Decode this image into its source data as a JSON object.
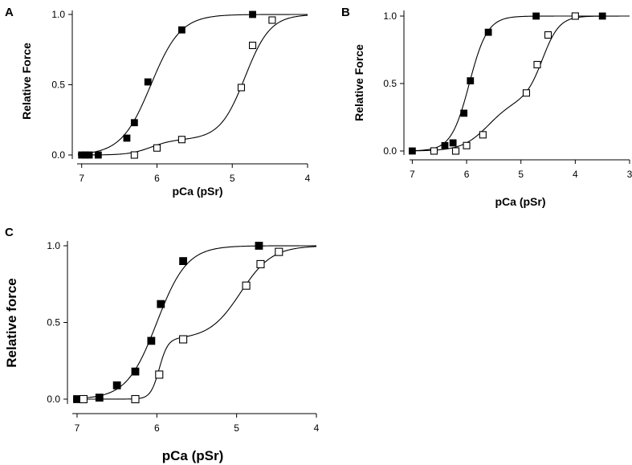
{
  "figure": {
    "panels": [
      {
        "letter": "A",
        "ylabel": "Relative Force",
        "xlabel": "pCa (pSr)"
      },
      {
        "letter": "B",
        "ylabel": "Relative Force",
        "xlabel": "pCa (pSr)"
      },
      {
        "letter": "C",
        "ylabel": "Relative force",
        "xlabel": "pCa (pSr)"
      }
    ]
  },
  "chart_data": [
    {
      "panel": "A",
      "type": "scatter",
      "title": "",
      "xlabel": "pCa (pSr)",
      "ylabel": "Relative Force",
      "xlim": [
        7.05,
        4
      ],
      "ylim": [
        0,
        1
      ],
      "xticks": [
        7,
        6,
        5,
        4
      ],
      "xtick_labels": [
        "7",
        "6",
        "5",
        "4"
      ],
      "yticks": [
        0,
        0.5,
        1
      ],
      "ytick_labels": [
        "0.0",
        "0.5",
        "1.0"
      ],
      "grid": false,
      "legend": "none",
      "series": [
        {
          "name": "filled squares",
          "marker": "filled-square",
          "x": [
            7.0,
            6.95,
            6.9,
            6.78,
            6.4,
            6.3,
            6.12,
            5.67,
            4.73
          ],
          "y": [
            0.0,
            0.0,
            0.0,
            0.0,
            0.12,
            0.23,
            0.52,
            0.89,
            1.0
          ],
          "fit": {
            "model": "hill",
            "bottom": 0.0,
            "top": 1.0,
            "pc50": 6.08,
            "n": 2.2
          }
        },
        {
          "name": "open squares",
          "marker": "open-square",
          "x": [
            6.3,
            6.0,
            5.67,
            4.88,
            4.73,
            4.47
          ],
          "y": [
            0.0,
            0.05,
            0.11,
            0.48,
            0.78,
            0.96
          ],
          "fit": {
            "model": "two-step",
            "step1": {
              "amplitude": 0.11,
              "pc50": 6.08,
              "n": 3.0
            },
            "step2": {
              "amplitude": 0.89,
              "pc50": 4.83,
              "n": 2.6
            }
          }
        }
      ]
    },
    {
      "panel": "B",
      "type": "scatter",
      "title": "",
      "xlabel": "pCa (pSr)",
      "ylabel": "Relative Force",
      "xlim": [
        7.05,
        3
      ],
      "ylim": [
        0,
        1
      ],
      "xticks": [
        7,
        6,
        5,
        4,
        3
      ],
      "xtick_labels": [
        "7",
        "6",
        "5",
        "4",
        "3"
      ],
      "yticks": [
        0,
        0.5,
        1
      ],
      "ytick_labels": [
        "0.0",
        "0.5",
        "1.0"
      ],
      "grid": false,
      "legend": "none",
      "series": [
        {
          "name": "filled squares",
          "marker": "filled-square",
          "x": [
            7.0,
            6.6,
            6.4,
            6.25,
            6.05,
            5.93,
            5.6,
            4.72,
            3.5
          ],
          "y": [
            0.0,
            0.0,
            0.04,
            0.06,
            0.28,
            0.52,
            0.88,
            1.0,
            1.0
          ],
          "fit": {
            "model": "hill",
            "bottom": 0.0,
            "top": 1.0,
            "pc50": 5.95,
            "n": 2.6
          }
        },
        {
          "name": "open squares",
          "marker": "open-square",
          "x": [
            6.6,
            6.2,
            6.0,
            5.7,
            4.9,
            4.7,
            4.5,
            4.0
          ],
          "y": [
            0.0,
            0.0,
            0.04,
            0.12,
            0.43,
            0.64,
            0.86,
            1.0
          ],
          "fit": {
            "model": "two-step",
            "step1": {
              "amplitude": 0.38,
              "pc50": 5.6,
              "n": 1.8
            },
            "step2": {
              "amplitude": 0.62,
              "pc50": 4.6,
              "n": 2.8
            }
          }
        }
      ]
    },
    {
      "panel": "C",
      "type": "scatter",
      "title": "",
      "xlabel": "pCa (pSr)",
      "ylabel": "Relative force",
      "xlim": [
        7.05,
        4
      ],
      "ylim": [
        0,
        1
      ],
      "xticks": [
        7,
        6,
        5,
        4
      ],
      "xtick_labels": [
        "7",
        "6",
        "5",
        "4"
      ],
      "yticks": [
        0,
        0.5,
        1
      ],
      "ytick_labels": [
        "0.0",
        "0.5",
        "1.0"
      ],
      "grid": false,
      "legend": "none",
      "series": [
        {
          "name": "filled squares",
          "marker": "filled-square",
          "x": [
            7.0,
            6.72,
            6.5,
            6.27,
            6.07,
            5.95,
            5.67,
            4.72
          ],
          "y": [
            0.0,
            0.01,
            0.09,
            0.18,
            0.38,
            0.62,
            0.9,
            1.0
          ],
          "fit": {
            "model": "hill",
            "bottom": 0.0,
            "top": 1.0,
            "pc50": 6.0,
            "n": 2.3
          }
        },
        {
          "name": "open squares",
          "marker": "open-square",
          "x": [
            6.92,
            6.27,
            5.97,
            5.67,
            4.88,
            4.7,
            4.47
          ],
          "y": [
            0.0,
            0.0,
            0.16,
            0.39,
            0.74,
            0.88,
            0.96
          ],
          "fit": {
            "model": "two-step",
            "step1": {
              "amplitude": 0.39,
              "pc50": 5.97,
              "n": 8.0
            },
            "step2": {
              "amplitude": 0.61,
              "pc50": 4.95,
              "n": 2.2
            }
          }
        }
      ]
    }
  ]
}
